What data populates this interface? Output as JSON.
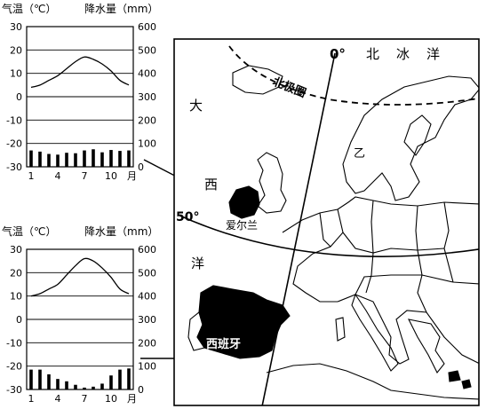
{
  "charts": [
    {
      "left_title": "气温（℃）",
      "right_title": "降水量（mm）",
      "left_ticks": [
        "30",
        "20",
        "10",
        "0",
        "-10",
        "-20",
        "-30"
      ],
      "right_ticks": [
        "600",
        "500",
        "400",
        "300",
        "200",
        "100",
        "0"
      ],
      "x_ticks": [
        "1",
        "4",
        "7",
        "10",
        "月"
      ]
    },
    {
      "left_title": "气温（℃）",
      "right_title": "降水量（mm）",
      "left_ticks": [
        "30",
        "20",
        "10",
        "0",
        "-10",
        "-20",
        "-30"
      ],
      "right_ticks": [
        "600",
        "500",
        "400",
        "300",
        "200",
        "100",
        "0"
      ],
      "x_ticks": [
        "1",
        "4",
        "7",
        "10",
        "月"
      ]
    }
  ],
  "chart_data": [
    {
      "type": "line+bar",
      "categories": [
        "1",
        "2",
        "3",
        "4",
        "5",
        "6",
        "7",
        "8",
        "9",
        "10",
        "11",
        "12"
      ],
      "series": [
        {
          "values": [
            4,
            5,
            7,
            9,
            12,
            15,
            17,
            16,
            14,
            11,
            7,
            5
          ]
        },
        {
          "values": [
            70,
            65,
            55,
            52,
            60,
            58,
            70,
            75,
            62,
            72,
            68,
            70
          ]
        }
      ],
      "ylim": [
        -30,
        30
      ],
      "y2lim": [
        0,
        600
      ]
    },
    {
      "type": "line+bar",
      "categories": [
        "1",
        "2",
        "3",
        "4",
        "5",
        "6",
        "7",
        "8",
        "9",
        "10",
        "11",
        "12"
      ],
      "series": [
        {
          "values": [
            10,
            11,
            13,
            15,
            19,
            23,
            26,
            25,
            22,
            18,
            13,
            11
          ]
        },
        {
          "values": [
            85,
            85,
            65,
            45,
            35,
            20,
            8,
            12,
            25,
            60,
            85,
            90
          ]
        }
      ],
      "ylim": [
        -30,
        30
      ],
      "y2lim": [
        0,
        600
      ]
    }
  ],
  "map": {
    "label_0": "0°",
    "label_50": "50°",
    "label_north_ocean": "北　冰　洋",
    "label_arctic_circle": "北极圈",
    "label_da": "大",
    "label_xi": "西",
    "label_yang": "洋",
    "label_yi": "乙",
    "label_ireland": "爱尔兰",
    "label_spain": "西班牙"
  }
}
